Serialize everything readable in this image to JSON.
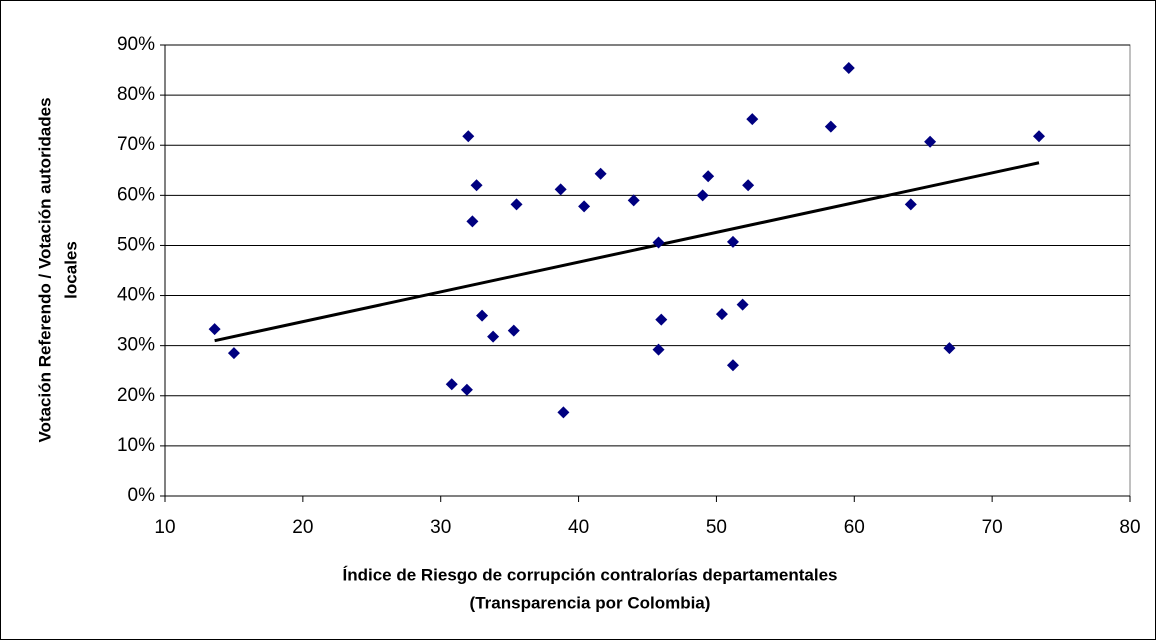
{
  "chart_data": {
    "type": "scatter",
    "xlabel": [
      "Índice de Riesgo de corrupción contralorías departamentales",
      "(Transparencia por Colombia)"
    ],
    "ylabel": [
      "Votación Referendo / Votación autoridades",
      "locales"
    ],
    "x": [
      13.6,
      15.0,
      30.8,
      31.9,
      32.0,
      32.3,
      32.6,
      33.0,
      33.8,
      35.3,
      35.5,
      38.7,
      38.9,
      40.4,
      41.6,
      44.0,
      45.8,
      45.8,
      46.0,
      49.0,
      49.4,
      50.4,
      51.2,
      51.2,
      51.9,
      52.3,
      52.6,
      58.3,
      59.6,
      64.1,
      65.5,
      66.9,
      73.4
    ],
    "values": [
      33.3,
      28.5,
      22.3,
      21.2,
      71.8,
      54.8,
      62.0,
      36.0,
      31.8,
      33.0,
      58.2,
      61.2,
      16.7,
      57.8,
      64.3,
      59.0,
      50.6,
      29.2,
      35.2,
      60.0,
      63.8,
      36.3,
      50.7,
      26.1,
      38.2,
      62.0,
      75.2,
      73.7,
      85.4,
      58.2,
      70.7,
      29.5,
      71.8
    ],
    "color": "#000080",
    "trendline": {
      "x": [
        13.6,
        73.4
      ],
      "values": [
        31.0,
        66.5
      ],
      "color": "#000000"
    },
    "xlim": [
      10,
      80
    ],
    "xticks": [
      10,
      20,
      30,
      40,
      50,
      60,
      70,
      80
    ],
    "ylim": [
      0,
      90
    ],
    "yticks": [
      {
        "value": 0,
        "label": "0%"
      },
      {
        "value": 10,
        "label": "10%"
      },
      {
        "value": 20,
        "label": "20%"
      },
      {
        "value": 30,
        "label": "30%"
      },
      {
        "value": 40,
        "label": "40%"
      },
      {
        "value": 50,
        "label": "50%"
      },
      {
        "value": 60,
        "label": "60%"
      },
      {
        "value": 70,
        "label": "70%"
      },
      {
        "value": 80,
        "label": "80%"
      },
      {
        "value": 90,
        "label": "90%"
      }
    ],
    "grid": true
  }
}
